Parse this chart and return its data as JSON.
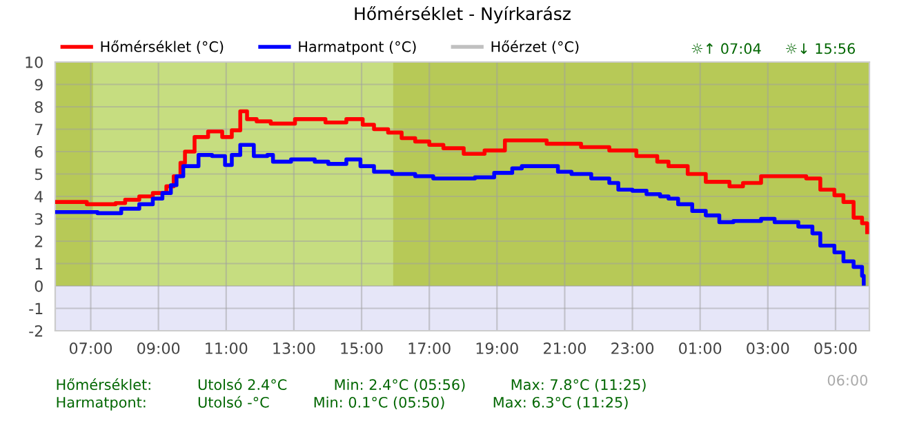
{
  "chart_data": {
    "type": "step",
    "title": "Hőmérséklet - Nyírkarász",
    "xlim": [
      "2000-01-01T05:57",
      "2000-01-02T06:00"
    ],
    "xticks": [
      {
        "value": "2000-01-01T07:00",
        "label": "07:00"
      },
      {
        "value": "2000-01-01T09:00",
        "label": "09:00"
      },
      {
        "value": "2000-01-01T11:00",
        "label": "11:00"
      },
      {
        "value": "2000-01-01T13:00",
        "label": "13:00"
      },
      {
        "value": "2000-01-01T15:00",
        "label": "15:00"
      },
      {
        "value": "2000-01-01T17:00",
        "label": "17:00"
      },
      {
        "value": "2000-01-01T19:00",
        "label": "19:00"
      },
      {
        "value": "2000-01-01T21:00",
        "label": "21:00"
      },
      {
        "value": "2000-01-01T23:00",
        "label": "23:00"
      },
      {
        "value": "2000-01-02T01:00",
        "label": "01:00"
      },
      {
        "value": "2000-01-02T03:00",
        "label": "03:00"
      },
      {
        "value": "2000-01-02T05:00",
        "label": "05:00"
      }
    ],
    "ylim": [
      -2,
      10
    ],
    "yticks": [
      -2,
      -1,
      0,
      1,
      2,
      3,
      4,
      5,
      6,
      7,
      8,
      9,
      10
    ],
    "grid": true,
    "legend": "top",
    "line_style": "solid",
    "marker": "none",
    "bands": [
      {
        "axis": "x",
        "from": "2000-01-01T07:04",
        "to": "2000-01-01T15:56",
        "color": "#c6dd80"
      },
      {
        "axis": "y",
        "from": -2,
        "to": 0,
        "color": "#e6e6f8"
      }
    ],
    "series": [
      {
        "name": "Hőmérséklet (°C)",
        "color": "#ff0000",
        "x": [
          "2000-01-01T05:59",
          "2000-01-01T06:53",
          "2000-01-01T07:44",
          "2000-01-01T08:01",
          "2000-01-01T08:26",
          "2000-01-01T08:50",
          "2000-01-01T09:14",
          "2000-01-01T09:27",
          "2000-01-01T09:39",
          "2000-01-01T09:47",
          "2000-01-01T10:04",
          "2000-01-01T10:28",
          "2000-01-01T10:53",
          "2000-01-01T11:10",
          "2000-01-01T11:25",
          "2000-01-01T11:37",
          "2000-01-01T11:54",
          "2000-01-01T12:19",
          "2000-01-01T13:02",
          "2000-01-01T13:56",
          "2000-01-01T14:33",
          "2000-01-01T15:02",
          "2000-01-01T15:22",
          "2000-01-01T15:47",
          "2000-01-01T16:11",
          "2000-01-01T16:35",
          "2000-01-01T17:00",
          "2000-01-01T17:25",
          "2000-01-01T18:01",
          "2000-01-01T18:38",
          "2000-01-01T19:14",
          "2000-01-01T20:28",
          "2000-01-01T21:29",
          "2000-01-01T22:19",
          "2000-01-01T23:07",
          "2000-01-01T23:44",
          "2000-01-02T00:04",
          "2000-01-02T00:38",
          "2000-01-02T01:10",
          "2000-01-02T01:52",
          "2000-01-02T02:16",
          "2000-01-02T02:48",
          "2000-01-02T03:37",
          "2000-01-02T04:08",
          "2000-01-02T04:33",
          "2000-01-02T04:58",
          "2000-01-02T05:14",
          "2000-01-02T05:32",
          "2000-01-02T05:47",
          "2000-01-02T05:56"
        ],
        "values": [
          3.75,
          3.65,
          3.7,
          3.85,
          4.0,
          4.15,
          4.45,
          4.9,
          5.5,
          6.0,
          6.65,
          6.9,
          6.65,
          6.95,
          7.8,
          7.45,
          7.35,
          7.25,
          7.45,
          7.3,
          7.45,
          7.2,
          7.0,
          6.85,
          6.6,
          6.45,
          6.3,
          6.15,
          5.9,
          6.05,
          6.5,
          6.35,
          6.2,
          6.05,
          5.8,
          5.55,
          5.35,
          5.0,
          4.65,
          4.45,
          4.6,
          4.9,
          4.9,
          4.8,
          4.3,
          4.05,
          3.75,
          3.05,
          2.8,
          2.4
        ]
      },
      {
        "name": "Harmatpont (°C)",
        "color": "#0000ff",
        "x": [
          "2000-01-01T05:59",
          "2000-01-01T07:12",
          "2000-01-01T07:54",
          "2000-01-01T08:26",
          "2000-01-01T08:50",
          "2000-01-01T09:07",
          "2000-01-01T09:22",
          "2000-01-01T09:32",
          "2000-01-01T09:44",
          "2000-01-01T10:04",
          "2000-01-01T10:11",
          "2000-01-01T10:35",
          "2000-01-01T10:58",
          "2000-01-01T11:10",
          "2000-01-01T11:25",
          "2000-01-01T11:49",
          "2000-01-01T12:13",
          "2000-01-01T12:23",
          "2000-01-01T12:55",
          "2000-01-01T13:37",
          "2000-01-01T14:01",
          "2000-01-01T14:33",
          "2000-01-01T14:58",
          "2000-01-01T15:22",
          "2000-01-01T15:54",
          "2000-01-01T16:35",
          "2000-01-01T17:07",
          "2000-01-01T17:41",
          "2000-01-01T18:21",
          "2000-01-01T18:55",
          "2000-01-01T19:27",
          "2000-01-01T19:44",
          "2000-01-01T20:23",
          "2000-01-01T20:48",
          "2000-01-01T21:12",
          "2000-01-01T21:47",
          "2000-01-01T22:19",
          "2000-01-01T22:35",
          "2000-01-01T23:00",
          "2000-01-01T23:25",
          "2000-01-01T23:49",
          "2000-01-02T00:04",
          "2000-01-02T00:21",
          "2000-01-02T00:46",
          "2000-01-02T01:10",
          "2000-01-02T01:34",
          "2000-01-02T01:59",
          "2000-01-02T02:48",
          "2000-01-02T03:12",
          "2000-01-02T03:54",
          "2000-01-02T04:19",
          "2000-01-02T04:33",
          "2000-01-02T04:58",
          "2000-01-02T05:14",
          "2000-01-02T05:32",
          "2000-01-02T05:47",
          "2000-01-02T05:50"
        ],
        "values": [
          3.3,
          3.25,
          3.45,
          3.65,
          3.9,
          4.15,
          4.5,
          4.9,
          5.35,
          5.35,
          5.85,
          5.8,
          5.4,
          5.85,
          6.3,
          5.8,
          5.85,
          5.55,
          5.65,
          5.55,
          5.45,
          5.65,
          5.35,
          5.1,
          5.0,
          4.9,
          4.8,
          4.8,
          4.85,
          5.05,
          5.25,
          5.35,
          5.35,
          5.1,
          5.0,
          4.8,
          4.6,
          4.3,
          4.25,
          4.1,
          4.0,
          3.9,
          3.65,
          3.35,
          3.15,
          2.85,
          2.9,
          3.0,
          2.85,
          2.65,
          2.35,
          1.8,
          1.5,
          1.1,
          0.85,
          0.45,
          0.1
        ]
      },
      {
        "name": "Hőérzet (°C)",
        "color": "#c0c0c0"
      }
    ],
    "annotations": [
      "☼↑ 07:04",
      "☼↓ 15:56",
      "Hőmérséklet:",
      "Utolsó 2.4°C",
      "Min: 2.4°C (05:56)",
      "Max: 7.8°C (11:25)",
      "Harmatpont:",
      "Utolsó -°C",
      "Min: 0.1°C (05:50)",
      "Max: 6.3°C (11:25)",
      "06:00"
    ]
  }
}
